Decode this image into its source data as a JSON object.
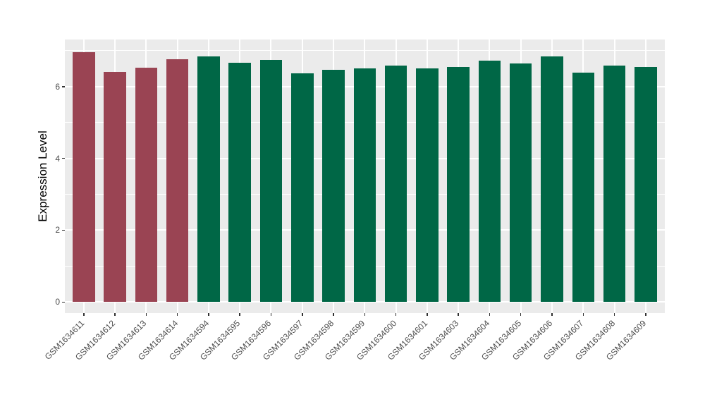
{
  "figure": {
    "background": "#FFFFFF"
  },
  "chart_data": {
    "type": "bar",
    "title": "",
    "xlabel": "",
    "ylabel": "Expression Level",
    "ylim": [
      0,
      7.3
    ],
    "yticks": [
      0,
      2,
      4,
      6
    ],
    "yticks_minor": [
      1,
      3,
      5,
      7
    ],
    "grid": "on",
    "legend_position": "none",
    "panel_background": "#EBEBEB",
    "gridline_color": "#FFFFFF",
    "axis_text_color": "#4D4D4D",
    "tick_mark_color": "#333333",
    "palette": {
      "highlight_red": "#9A4453",
      "baseline_green": "#006746"
    },
    "categories": [
      "GSM1634611",
      "GSM1634612",
      "GSM1634613",
      "GSM1634614",
      "GSM1634594",
      "GSM1634595",
      "GSM1634596",
      "GSM1634597",
      "GSM1634598",
      "GSM1634599",
      "GSM1634600",
      "GSM1634601",
      "GSM1634603",
      "GSM1634604",
      "GSM1634605",
      "GSM1634606",
      "GSM1634607",
      "GSM1634608",
      "GSM1634609"
    ],
    "values": [
      6.96,
      6.4,
      6.52,
      6.76,
      6.84,
      6.67,
      6.75,
      6.37,
      6.46,
      6.51,
      6.59,
      6.5,
      6.55,
      6.72,
      6.64,
      6.84,
      6.38,
      6.59,
      6.55
    ],
    "bar_colors": [
      "#9A4453",
      "#9A4453",
      "#9A4453",
      "#9A4453",
      "#006746",
      "#006746",
      "#006746",
      "#006746",
      "#006746",
      "#006746",
      "#006746",
      "#006746",
      "#006746",
      "#006746",
      "#006746",
      "#006746",
      "#006746",
      "#006746",
      "#006746"
    ]
  }
}
